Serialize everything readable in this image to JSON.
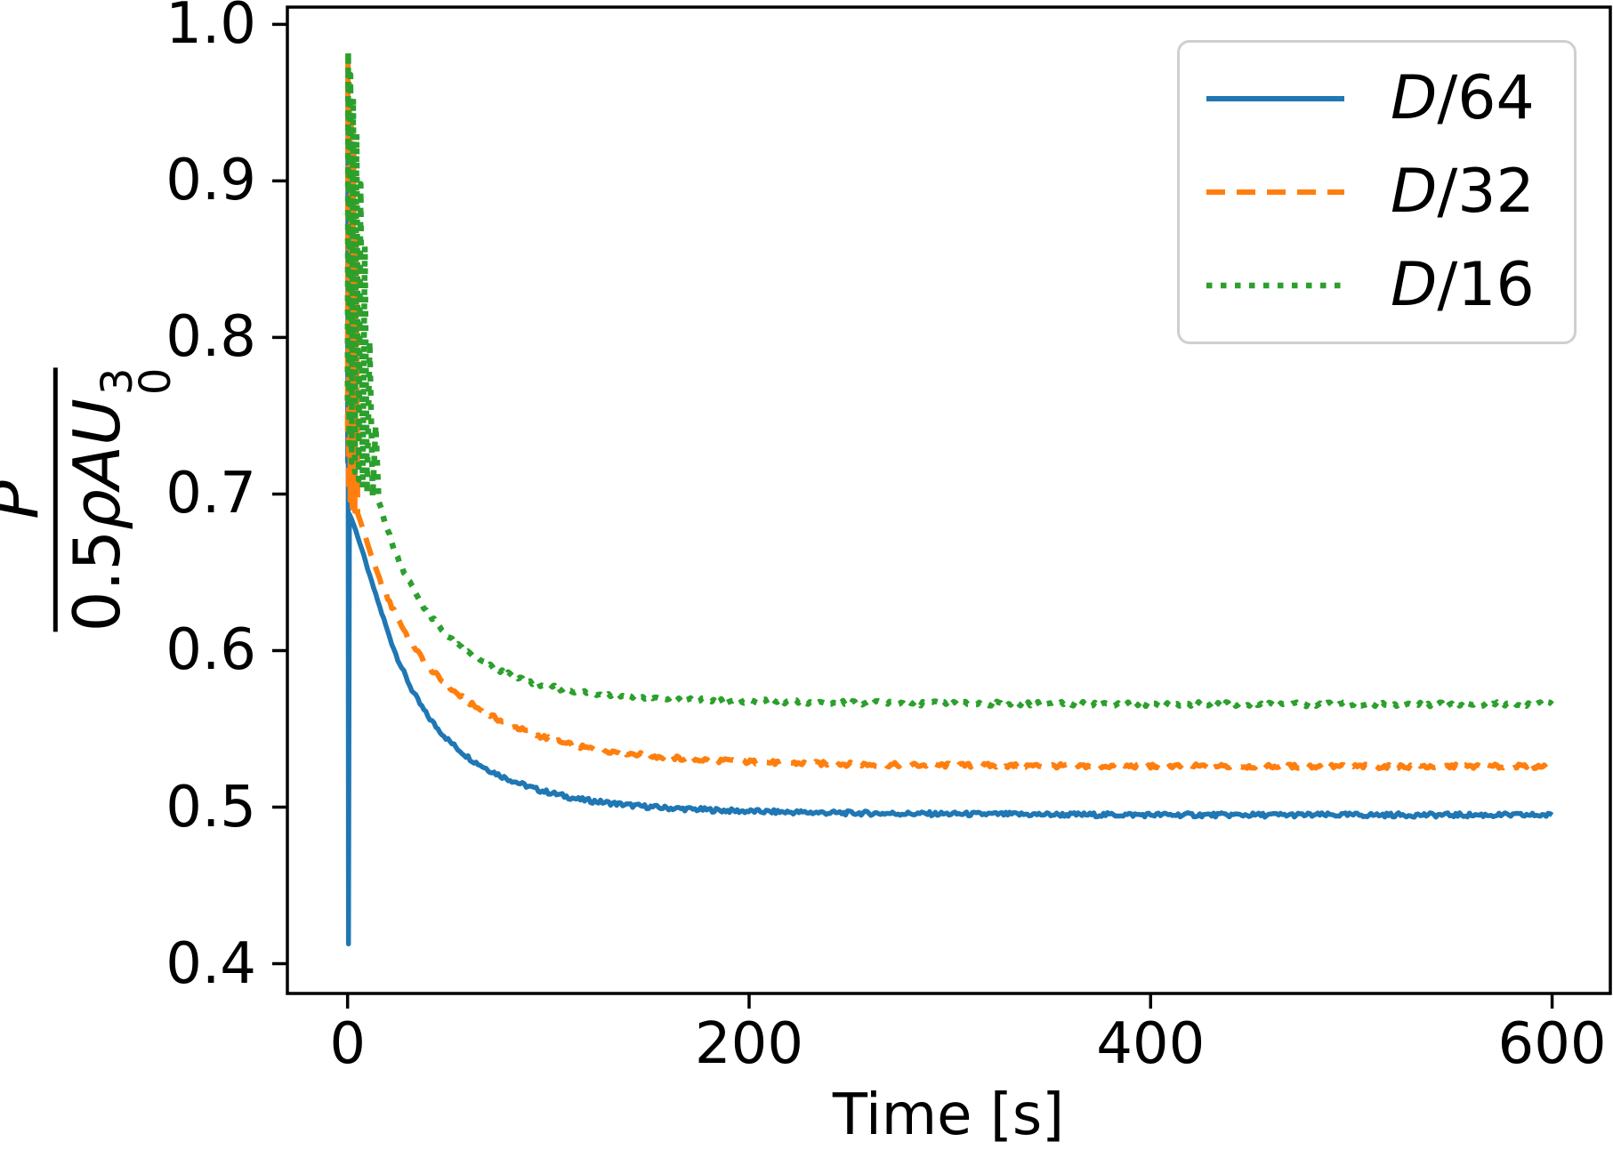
{
  "chart_data": {
    "type": "line",
    "title": "",
    "xlabel": "Time [s]",
    "ylabel": {
      "numerator": "P",
      "den_coeff": "0.5",
      "den_rho": "ρ",
      "den_area": "A",
      "den_vel": "U",
      "den_sub": "0",
      "den_sup": "3"
    },
    "xlim": [
      -30,
      629
    ],
    "ylim": [
      0.381,
      1.011
    ],
    "xticks": [
      0,
      200,
      400,
      600
    ],
    "yticks": [
      0.4,
      0.5,
      0.6,
      0.7,
      0.8,
      0.9,
      1.0
    ],
    "grid": false,
    "legend_position": "upper right",
    "axis_color": "#000000",
    "series": [
      {
        "label": "D/64",
        "label_italic": "D",
        "label_rest": "/64",
        "color": "#1f77b4",
        "style": "solid",
        "line_width": 5.5,
        "peak_value": 0.969,
        "initial_min": 0.413,
        "steady_state": 0.495,
        "points": [
          [
            0,
            0.72
          ],
          [
            0.2,
            0.969
          ],
          [
            0.45,
            0.413
          ],
          [
            0.9,
            0.687
          ],
          [
            2,
            0.684
          ],
          [
            4,
            0.677
          ],
          [
            6,
            0.669
          ],
          [
            8,
            0.661
          ],
          [
            10,
            0.652
          ],
          [
            13,
            0.64
          ],
          [
            16,
            0.628
          ],
          [
            20,
            0.612
          ],
          [
            24,
            0.598
          ],
          [
            28,
            0.586
          ],
          [
            32,
            0.575
          ],
          [
            36,
            0.566
          ],
          [
            40,
            0.558
          ],
          [
            45,
            0.55
          ],
          [
            50,
            0.543
          ],
          [
            56,
            0.536
          ],
          [
            62,
            0.53
          ],
          [
            70,
            0.524
          ],
          [
            78,
            0.519
          ],
          [
            86,
            0.515
          ],
          [
            95,
            0.511
          ],
          [
            105,
            0.508
          ],
          [
            115,
            0.505
          ],
          [
            128,
            0.503
          ],
          [
            142,
            0.501
          ],
          [
            158,
            0.4995
          ],
          [
            175,
            0.4985
          ],
          [
            195,
            0.4975
          ],
          [
            220,
            0.4968
          ],
          [
            250,
            0.4962
          ],
          [
            285,
            0.4958
          ],
          [
            320,
            0.4955
          ],
          [
            360,
            0.4952
          ],
          [
            400,
            0.4951
          ],
          [
            450,
            0.495
          ],
          [
            500,
            0.495
          ],
          [
            550,
            0.495
          ],
          [
            600,
            0.4949
          ]
        ]
      },
      {
        "label": "D/32",
        "label_italic": "D",
        "label_rest": "/32",
        "color": "#ff7f0e",
        "style": "dashed",
        "line_width": 6,
        "peak_value": 0.979,
        "steady_state": 0.526,
        "points": [
          [
            0,
            0.74
          ],
          [
            0.2,
            0.979
          ],
          [
            0.5,
            0.701
          ],
          [
            0.9,
            0.962
          ],
          [
            1.3,
            0.696
          ],
          [
            1.8,
            0.944
          ],
          [
            2.3,
            0.691
          ],
          [
            3,
            0.923
          ],
          [
            3.6,
            0.689
          ],
          [
            4.3,
            0.862
          ],
          [
            5,
            0.688
          ],
          [
            7,
            0.68
          ],
          [
            9,
            0.672
          ],
          [
            12,
            0.66
          ],
          [
            15,
            0.649
          ],
          [
            18,
            0.639
          ],
          [
            22,
            0.628
          ],
          [
            26,
            0.618
          ],
          [
            30,
            0.609
          ],
          [
            35,
            0.599
          ],
          [
            40,
            0.59
          ],
          [
            46,
            0.582
          ],
          [
            52,
            0.575
          ],
          [
            58,
            0.569
          ],
          [
            65,
            0.563
          ],
          [
            72,
            0.558
          ],
          [
            80,
            0.553
          ],
          [
            88,
            0.549
          ],
          [
            97,
            0.545
          ],
          [
            107,
            0.541
          ],
          [
            118,
            0.538
          ],
          [
            130,
            0.536
          ],
          [
            143,
            0.534
          ],
          [
            157,
            0.532
          ],
          [
            172,
            0.5305
          ],
          [
            190,
            0.5295
          ],
          [
            210,
            0.5285
          ],
          [
            235,
            0.5278
          ],
          [
            260,
            0.5272
          ],
          [
            290,
            0.5268
          ],
          [
            320,
            0.5265
          ],
          [
            360,
            0.5263
          ],
          [
            400,
            0.5262
          ],
          [
            450,
            0.5261
          ],
          [
            500,
            0.526
          ],
          [
            550,
            0.526
          ],
          [
            600,
            0.526
          ]
        ]
      },
      {
        "label": "D/16",
        "label_italic": "D",
        "label_rest": "/16",
        "color": "#2ca02c",
        "style": "dotted",
        "line_width": 6.5,
        "peak_value": 0.983,
        "steady_state": 0.566,
        "points": [
          [
            0,
            0.76
          ],
          [
            0.3,
            0.983
          ],
          [
            0.8,
            0.732
          ],
          [
            1.4,
            0.968
          ],
          [
            2,
            0.72
          ],
          [
            2.8,
            0.953
          ],
          [
            3.6,
            0.714
          ],
          [
            4.5,
            0.93
          ],
          [
            5.5,
            0.709
          ],
          [
            6.5,
            0.898
          ],
          [
            7.5,
            0.704
          ],
          [
            8.6,
            0.858
          ],
          [
            9.7,
            0.7
          ],
          [
            11,
            0.798
          ],
          [
            12.5,
            0.698
          ],
          [
            14,
            0.744
          ],
          [
            15.5,
            0.695
          ],
          [
            17,
            0.69
          ],
          [
            19,
            0.681
          ],
          [
            22,
            0.669
          ],
          [
            25,
            0.659
          ],
          [
            28,
            0.651
          ],
          [
            32,
            0.641
          ],
          [
            36,
            0.632
          ],
          [
            40,
            0.624
          ],
          [
            45,
            0.616
          ],
          [
            50,
            0.609
          ],
          [
            56,
            0.602
          ],
          [
            62,
            0.597
          ],
          [
            68,
            0.592
          ],
          [
            75,
            0.5875
          ],
          [
            82,
            0.5838
          ],
          [
            90,
            0.5805
          ],
          [
            100,
            0.5772
          ],
          [
            110,
            0.5748
          ],
          [
            122,
            0.5728
          ],
          [
            135,
            0.5712
          ],
          [
            150,
            0.5698
          ],
          [
            168,
            0.5688
          ],
          [
            188,
            0.568
          ],
          [
            210,
            0.5674
          ],
          [
            240,
            0.5668
          ],
          [
            270,
            0.5664
          ],
          [
            300,
            0.5662
          ],
          [
            340,
            0.566
          ],
          [
            380,
            0.5659
          ],
          [
            420,
            0.5658
          ],
          [
            460,
            0.5658
          ],
          [
            500,
            0.5657
          ],
          [
            550,
            0.5657
          ],
          [
            600,
            0.5657
          ]
        ]
      }
    ]
  }
}
